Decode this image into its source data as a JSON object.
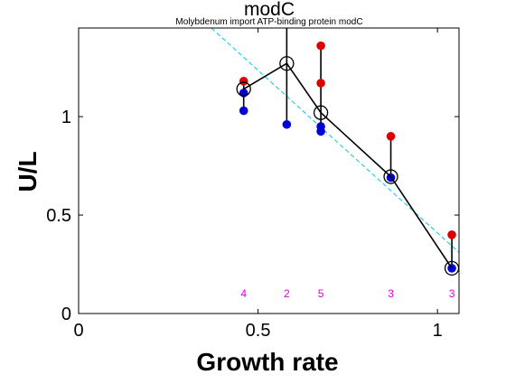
{
  "chart_data": {
    "type": "scatter",
    "title": "modC",
    "subtitle": "Molybdenum import ATP-binding protein modC",
    "xlabel": "Growth rate",
    "ylabel": "U/L",
    "xlim": [
      0,
      1.06
    ],
    "ylim": [
      0,
      1.45
    ],
    "xticks": [
      0,
      0.5,
      1
    ],
    "xtick_labels": [
      "0",
      "0.5",
      "1"
    ],
    "yticks": [
      0,
      0.5,
      1
    ],
    "ytick_labels": [
      "0",
      "0.5",
      "1"
    ],
    "grid": false,
    "colors": {
      "red": "#dd0000",
      "blue": "#0000dd",
      "mean": "#000000",
      "fit": "#00ccdd",
      "count": "#dd00dd"
    },
    "fit_line": {
      "x": [
        0.37,
        1.06
      ],
      "y": [
        1.45,
        0.31
      ]
    },
    "groups": [
      {
        "x": 0.46,
        "mean": 1.14,
        "red": [
          1.18
        ],
        "blue": [
          1.12,
          1.03
        ],
        "n": "4"
      },
      {
        "x": 0.58,
        "mean": 1.27,
        "red": [
          1.52
        ],
        "blue": [
          0.96
        ],
        "n": "2"
      },
      {
        "x": 0.675,
        "mean": 1.02,
        "red": [
          1.36,
          1.17
        ],
        "blue": [
          0.95,
          0.925
        ],
        "n": "5"
      },
      {
        "x": 0.87,
        "mean": 0.695,
        "red": [
          0.9
        ],
        "blue": [
          0.69
        ],
        "n": "3"
      },
      {
        "x": 1.04,
        "mean": 0.23,
        "red": [
          0.4
        ],
        "blue": [
          0.23
        ],
        "n": "3"
      }
    ],
    "count_label_y": 0.1
  }
}
